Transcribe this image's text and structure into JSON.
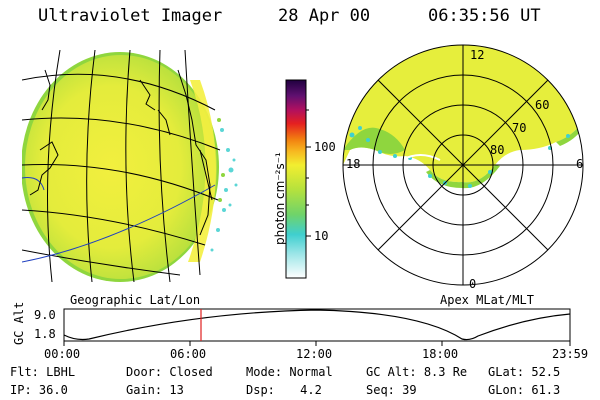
{
  "header": {
    "title": "Ultraviolet Imager",
    "date": "28 Apr 00",
    "time": "06:35:56 UT"
  },
  "colorbar": {
    "unit_label": "photon cm⁻²s⁻¹",
    "ticks": [
      "100",
      "10"
    ]
  },
  "maps": {
    "left_caption": "Geographic Lat/Lon",
    "right_caption": "Apex MLat/MLT",
    "polar_mlt_labels": [
      "12",
      "18",
      "6",
      "0"
    ],
    "polar_lat_labels": [
      "60",
      "70",
      "80"
    ]
  },
  "timeline": {
    "ylabel": "GC Alt",
    "y_ticks": [
      "9.0",
      "1.8"
    ],
    "x_ticks": [
      "00:00",
      "06:00",
      "12:00",
      "18:00",
      "23:59"
    ],
    "current_marker_time": "06:35:56"
  },
  "status": {
    "row1": [
      {
        "key": "Flt:",
        "value": "LBHL"
      },
      {
        "key": "Door:",
        "value": "Closed"
      },
      {
        "key": "Mode:",
        "value": "Normal"
      },
      {
        "key": "GC Alt:",
        "value": "8.3 Re"
      },
      {
        "key": "GLat:",
        "value": "52.5"
      }
    ],
    "row2": [
      {
        "key": "IP:",
        "value": "36.0"
      },
      {
        "key": "Gain:",
        "value": "13"
      },
      {
        "key": "Dsp:",
        "value": "4.2"
      },
      {
        "key": "Seq:",
        "value": "39"
      },
      {
        "key": "GLon:",
        "value": "61.3"
      }
    ]
  },
  "colors": {
    "emission_main": "#e6ee3c",
    "emission_bright": "#f3f03f",
    "emission_green": "#8fd63e",
    "emission_cyan": "#3fd0cf",
    "marker": "#e02020"
  }
}
